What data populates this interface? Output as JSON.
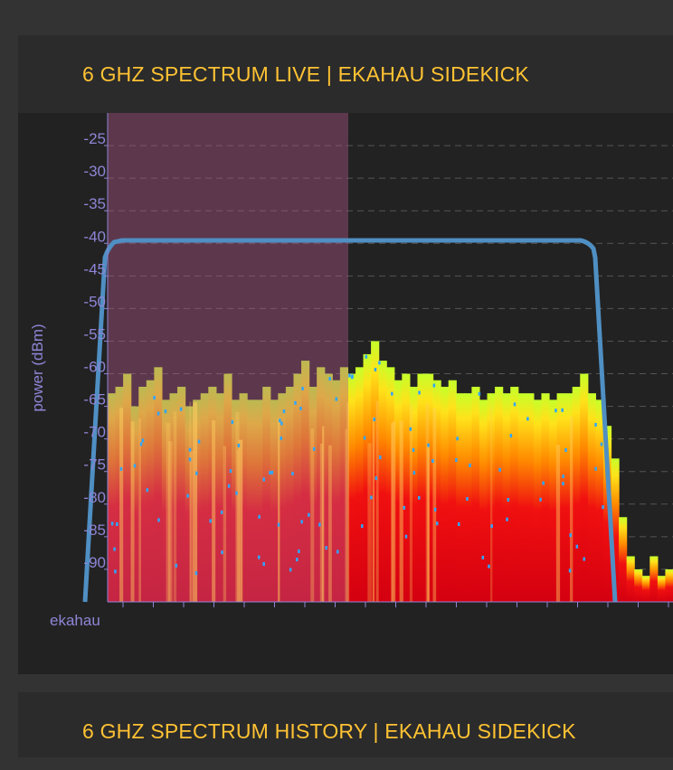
{
  "panels": {
    "live": {
      "title": "6 GHZ SPECTRUM LIVE | EKAHAU SIDEKICK"
    },
    "history": {
      "title": "6 GHZ SPECTRUM HISTORY | EKAHAU SIDEKICK"
    }
  },
  "colors": {
    "title": "#ffc233",
    "axis": "#8e85d6",
    "mask": "#4f8fc3",
    "background": "#222222"
  },
  "chart_data": {
    "type": "area",
    "ylabel": "power (dBm)",
    "xlabel": "ekahau",
    "ylim": [
      -95,
      -20
    ],
    "y_ticks": [
      -25,
      -30,
      -35,
      -40,
      -45,
      -50,
      -55,
      -60,
      -65,
      -70,
      -75,
      -80,
      -85,
      -90
    ],
    "y_tick_labels": [
      "-25",
      "-30",
      "-35",
      "-40",
      "-45",
      "-50",
      "-55",
      "-60",
      "-65",
      "-70",
      "-75",
      "-80",
      "-85",
      "-90"
    ],
    "grid": true,
    "series": [
      {
        "values": [
          -63,
          -62,
          -60,
          -65,
          -62,
          -61,
          -59,
          -64,
          -63,
          -62,
          -65,
          -64,
          -63,
          -62,
          -63,
          -60,
          -64,
          -63,
          -64,
          -64,
          -62,
          -64,
          -63,
          -62,
          -60,
          -58,
          -62,
          -59,
          -60,
          -61,
          -59,
          -60,
          -59,
          -57,
          -55,
          -58,
          -59,
          -61,
          -60,
          -62,
          -60,
          -60,
          -61,
          -62,
          -61,
          -63,
          -63,
          -62,
          -64,
          -63,
          -62,
          -63,
          -62,
          -63,
          -63,
          -64,
          -63,
          -64,
          -63,
          -63,
          -62,
          -60,
          -63,
          -64,
          -68,
          -73,
          -82,
          -88,
          -90,
          -91,
          -88,
          -91,
          -90
        ]
      }
    ]
  }
}
